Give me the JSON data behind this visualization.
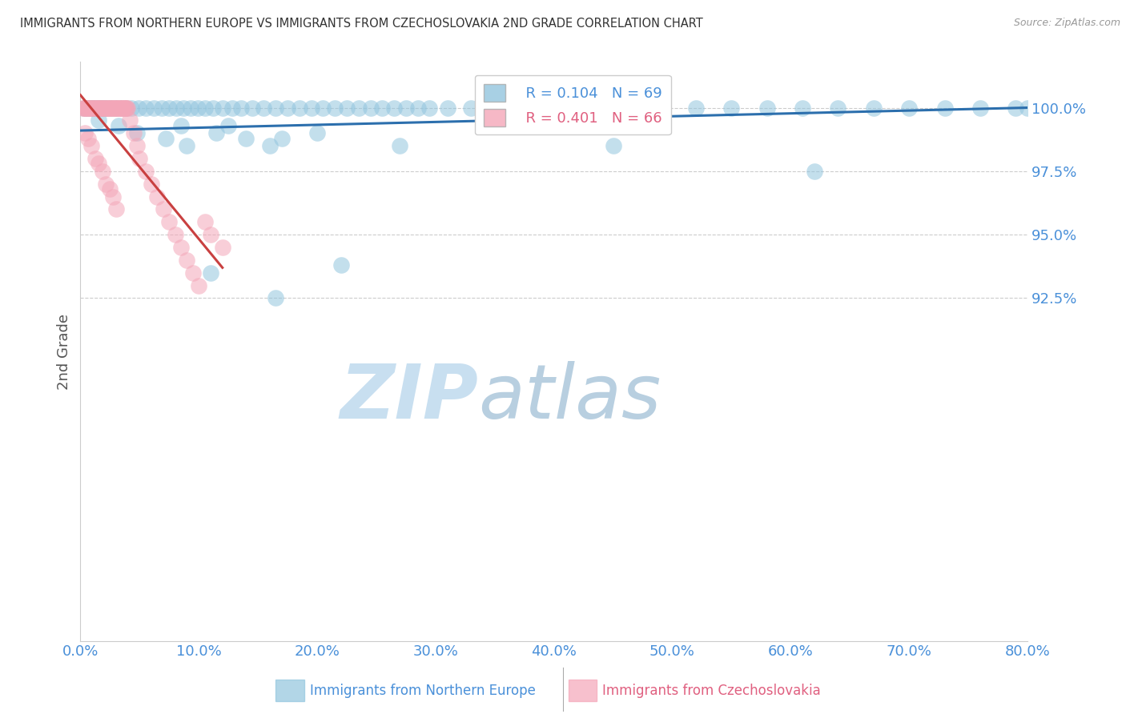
{
  "title": "IMMIGRANTS FROM NORTHERN EUROPE VS IMMIGRANTS FROM CZECHOSLOVAKIA 2ND GRADE CORRELATION CHART",
  "source": "Source: ZipAtlas.com",
  "ylabel": "2nd Grade",
  "xlabel_blue": "Immigrants from Northern Europe",
  "xlabel_pink": "Immigrants from Czechoslovakia",
  "legend_blue_r": "R = 0.104",
  "legend_blue_n": "N = 69",
  "legend_pink_r": "R = 0.401",
  "legend_pink_n": "N = 66",
  "xlim": [
    0.0,
    80.0
  ],
  "ylim": [
    79.0,
    101.8
  ],
  "yticks": [
    92.5,
    95.0,
    97.5,
    100.0
  ],
  "xticks": [
    0.0,
    10.0,
    20.0,
    30.0,
    40.0,
    50.0,
    60.0,
    70.0,
    80.0
  ],
  "blue_color": "#92c5de",
  "pink_color": "#f4a6b8",
  "line_blue_color": "#2c6fad",
  "line_pink_color": "#c94040",
  "title_color": "#333333",
  "tick_color": "#4a90d9",
  "grid_color": "#cccccc",
  "watermark_zip_color": "#c8dff0",
  "watermark_atlas_color": "#b0c8e0",
  "blue_scatter_x": [
    0.3,
    0.5,
    0.8,
    1.0,
    1.2,
    1.4,
    1.6,
    1.8,
    2.0,
    2.3,
    2.6,
    3.0,
    3.4,
    3.8,
    4.3,
    4.9,
    5.5,
    6.2,
    6.9,
    7.5,
    8.1,
    8.7,
    9.3,
    9.9,
    10.5,
    11.2,
    12.0,
    12.8,
    13.6,
    14.5,
    15.5,
    16.5,
    17.5,
    18.5,
    19.5,
    20.5,
    21.5,
    22.5,
    23.5,
    24.5,
    25.5,
    26.5,
    27.5,
    28.5,
    29.5,
    31.0,
    33.0,
    35.0,
    37.0,
    39.0,
    41.0,
    43.0,
    45.0,
    47.0,
    49.0,
    52.0,
    55.0,
    58.0,
    61.0,
    64.0,
    67.0,
    70.0,
    73.0,
    76.0,
    79.0,
    8.5,
    11.5,
    14.0,
    16.0
  ],
  "blue_scatter_y": [
    100.0,
    100.0,
    100.0,
    100.0,
    100.0,
    100.0,
    100.0,
    100.0,
    100.0,
    100.0,
    100.0,
    100.0,
    100.0,
    100.0,
    100.0,
    100.0,
    100.0,
    100.0,
    100.0,
    100.0,
    100.0,
    100.0,
    100.0,
    100.0,
    100.0,
    100.0,
    100.0,
    100.0,
    100.0,
    100.0,
    100.0,
    100.0,
    100.0,
    100.0,
    100.0,
    100.0,
    100.0,
    100.0,
    100.0,
    100.0,
    100.0,
    100.0,
    100.0,
    100.0,
    100.0,
    100.0,
    100.0,
    100.0,
    100.0,
    100.0,
    100.0,
    100.0,
    100.0,
    100.0,
    100.0,
    100.0,
    100.0,
    100.0,
    100.0,
    100.0,
    100.0,
    100.0,
    100.0,
    100.0,
    100.0,
    99.3,
    99.0,
    98.8,
    98.5
  ],
  "blue_outlier_x": [
    1.5,
    3.2,
    4.8,
    7.2,
    9.0,
    12.5,
    17.0,
    20.0,
    27.0,
    45.0,
    62.0,
    80.0,
    11.0,
    22.0,
    16.5
  ],
  "blue_outlier_y": [
    99.5,
    99.3,
    99.0,
    98.8,
    98.5,
    99.3,
    98.8,
    99.0,
    98.5,
    98.5,
    97.5,
    100.0,
    93.5,
    93.8,
    92.5
  ],
  "pink_scatter_x": [
    0.2,
    0.3,
    0.4,
    0.5,
    0.6,
    0.7,
    0.8,
    0.9,
    1.0,
    1.1,
    1.2,
    1.3,
    1.4,
    1.5,
    1.6,
    1.7,
    1.8,
    1.9,
    2.0,
    2.1,
    2.2,
    2.3,
    2.4,
    2.5,
    2.6,
    2.7,
    2.8,
    2.9,
    3.0,
    3.1,
    3.2,
    3.3,
    3.4,
    3.5,
    3.6,
    3.7,
    3.8,
    3.9,
    4.0,
    4.2,
    4.5,
    4.8,
    5.0,
    5.5,
    6.0,
    6.5,
    7.0,
    7.5,
    8.0,
    8.5,
    9.0,
    9.5,
    10.0,
    10.5,
    11.0,
    12.0,
    0.35,
    0.65,
    0.95,
    1.25,
    1.55,
    1.85,
    2.15,
    2.45,
    2.75,
    3.05
  ],
  "pink_scatter_y": [
    100.0,
    100.0,
    100.0,
    100.0,
    100.0,
    100.0,
    100.0,
    100.0,
    100.0,
    100.0,
    100.0,
    100.0,
    100.0,
    100.0,
    100.0,
    100.0,
    100.0,
    100.0,
    100.0,
    100.0,
    100.0,
    100.0,
    100.0,
    100.0,
    100.0,
    100.0,
    100.0,
    100.0,
    100.0,
    100.0,
    100.0,
    100.0,
    100.0,
    100.0,
    100.0,
    100.0,
    100.0,
    100.0,
    100.0,
    99.5,
    99.0,
    98.5,
    98.0,
    97.5,
    97.0,
    96.5,
    96.0,
    95.5,
    95.0,
    94.5,
    94.0,
    93.5,
    93.0,
    95.5,
    95.0,
    94.5,
    99.0,
    98.8,
    98.5,
    98.0,
    97.8,
    97.5,
    97.0,
    96.8,
    96.5,
    96.0
  ],
  "blue_line_x": [
    0.0,
    80.0
  ],
  "blue_line_y": [
    99.1,
    100.0
  ],
  "pink_line_x": [
    0.0,
    12.0
  ],
  "pink_line_y": [
    100.5,
    93.7
  ]
}
